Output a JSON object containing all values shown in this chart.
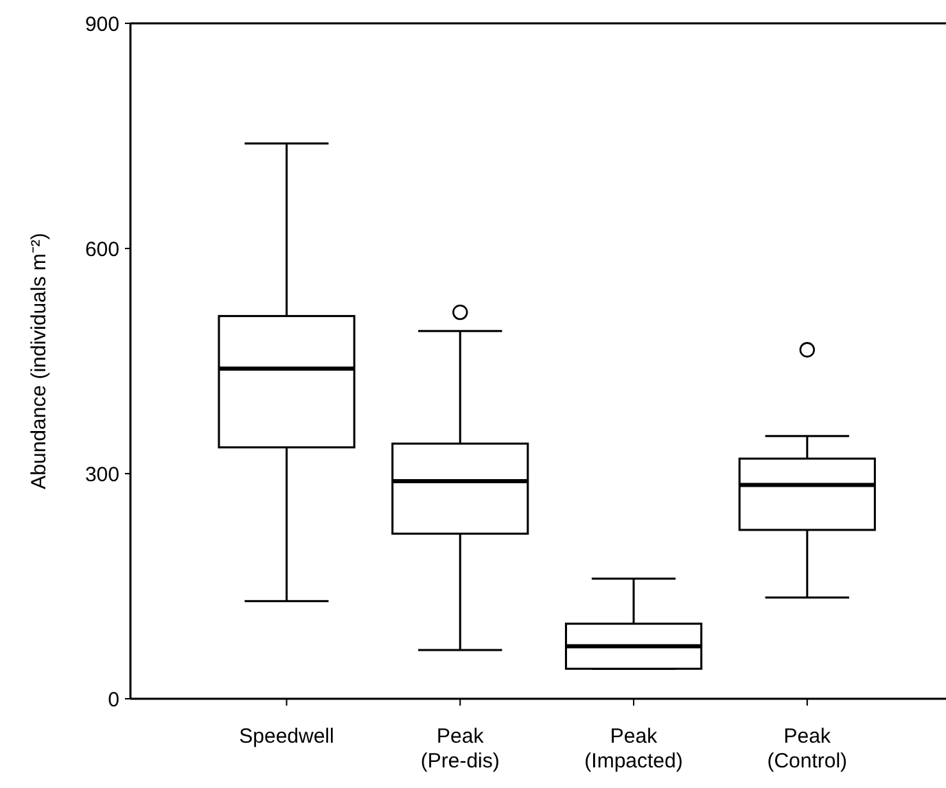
{
  "chart_data": {
    "type": "box",
    "ylabel": "Abundance (individuals m⁻²)",
    "categories": [
      "Speedwell",
      "Peak\n(Pre-dis)",
      "Peak\n(Impacted)",
      "Peak\n(Control)"
    ],
    "ylim": [
      0,
      900
    ],
    "yticks": [
      0,
      300,
      600,
      900
    ],
    "grid": false,
    "boxes": [
      {
        "low": 130,
        "q1": 335,
        "median": 440,
        "q3": 510,
        "high": 740
      },
      {
        "low": 65,
        "q1": 220,
        "median": 290,
        "q3": 340,
        "high": 490,
        "outliers": [
          515
        ]
      },
      {
        "low": 40,
        "q1": 40,
        "median": 70,
        "q3": 100,
        "high": 160
      },
      {
        "low": 135,
        "q1": 225,
        "median": 285,
        "q3": 320,
        "high": 350,
        "outliers": [
          465
        ]
      }
    ]
  }
}
